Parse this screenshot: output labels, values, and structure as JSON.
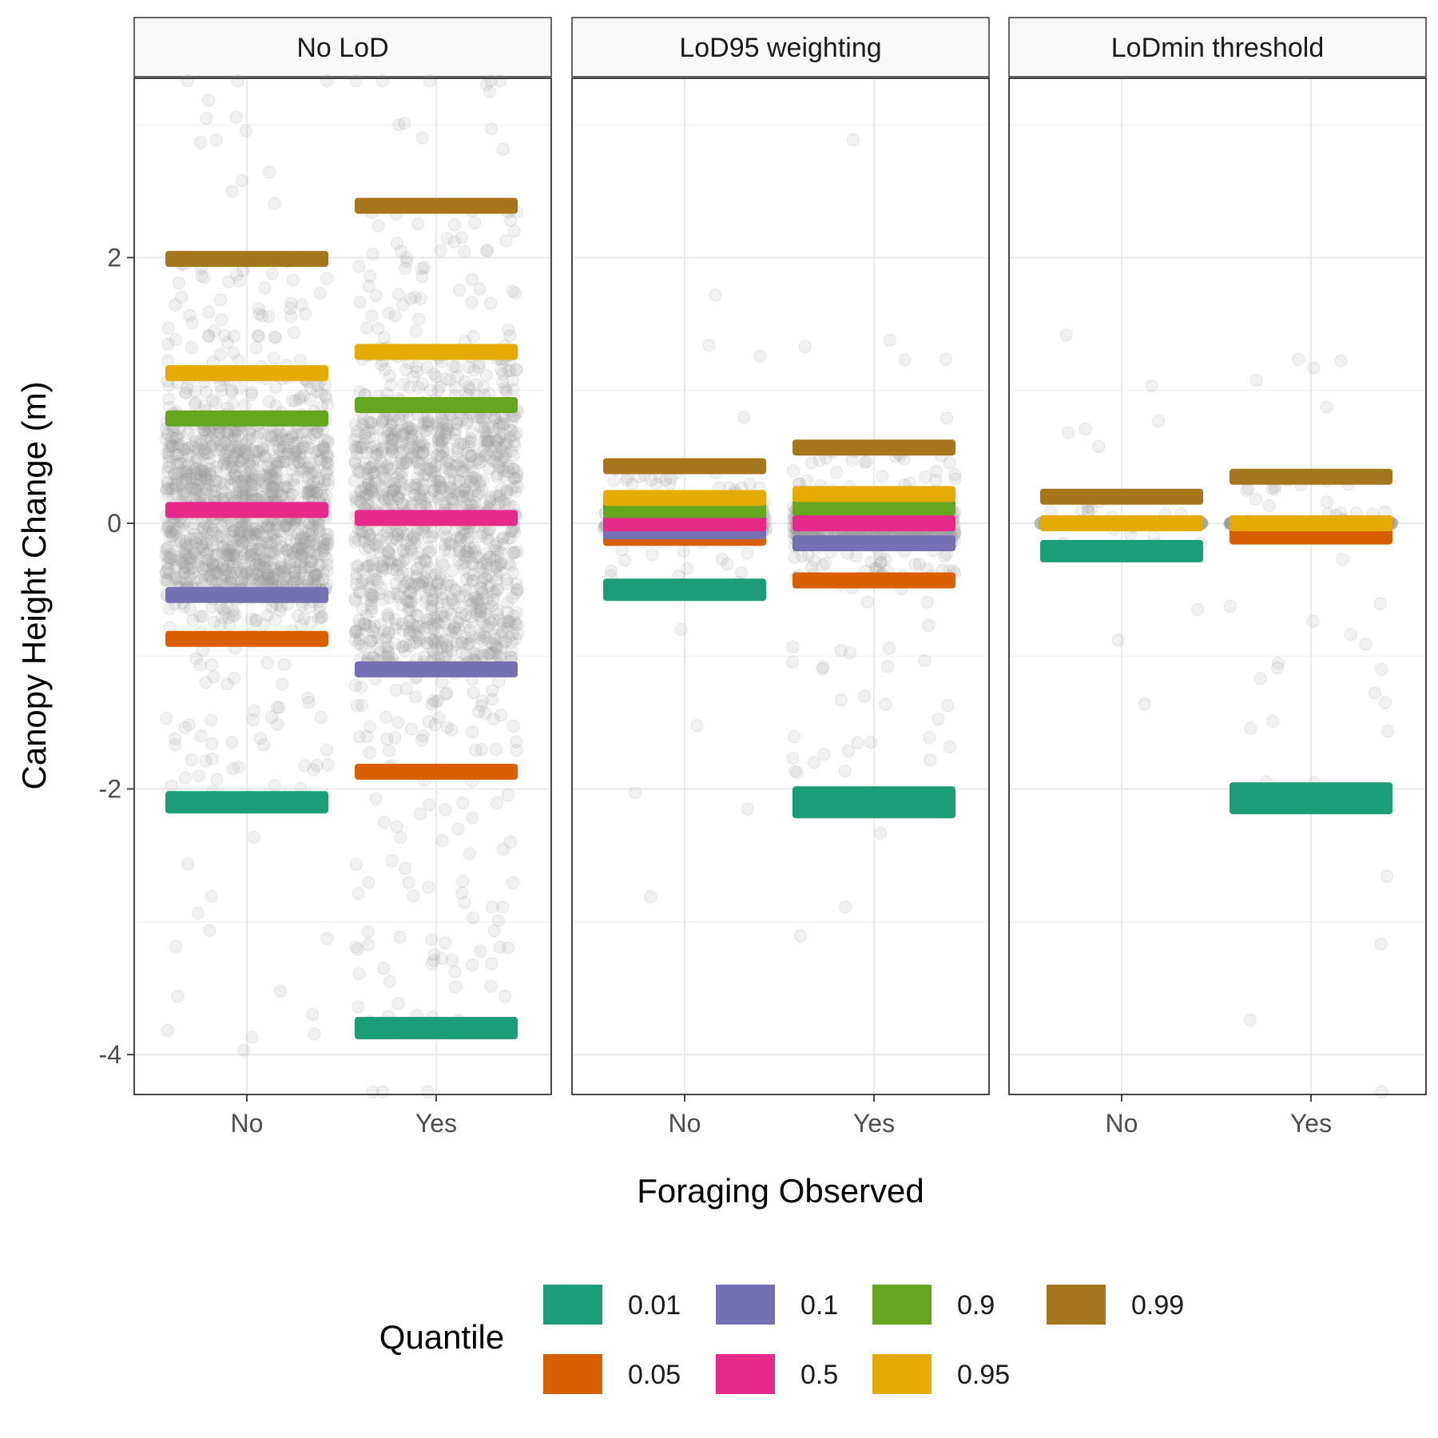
{
  "chart_data": {
    "type": "scatter",
    "facets": [
      "No LoD",
      "LoD95 weighting",
      "LoDmin threshold"
    ],
    "categories": [
      "No",
      "Yes"
    ],
    "xlabel": "Foraging Observed",
    "ylabel": "Canopy Height Change (m)",
    "ylim": [
      -4.3,
      3.35
    ],
    "yticks": [
      2,
      0,
      -2,
      -4
    ],
    "ytick_labels": [
      "2",
      "0",
      "-2",
      "-4"
    ],
    "grid": true,
    "point_color": "#9e9e9e",
    "legend": {
      "title": "Quantile",
      "placement": "bottom",
      "items": [
        {
          "label": "0.01",
          "color": "#1b9e77"
        },
        {
          "label": "0.05",
          "color": "#d95f02"
        },
        {
          "label": "0.1",
          "color": "#7570b3"
        },
        {
          "label": "0.5",
          "color": "#e7298a"
        },
        {
          "label": "0.9",
          "color": "#66a61e"
        },
        {
          "label": "0.95",
          "color": "#e6ab02"
        },
        {
          "label": "0.99",
          "color": "#a6761d"
        }
      ]
    },
    "series": [
      {
        "facet": "No LoD",
        "category": "No",
        "point_density": "dense",
        "quantiles": {
          "0.01": -2.1,
          "0.05": -0.87,
          "0.1": -0.54,
          "0.5": 0.1,
          "0.9": 0.79,
          "0.95": 1.13,
          "0.99": 1.99
        }
      },
      {
        "facet": "No LoD",
        "category": "Yes",
        "point_density": "dense",
        "quantiles": {
          "0.01": -3.8,
          "0.05": -1.87,
          "0.1": -1.1,
          "0.5": 0.04,
          "0.9": 0.89,
          "0.95": 1.29,
          "0.99": 2.39
        }
      },
      {
        "facet": "LoD95 weighting",
        "category": "No",
        "point_density": "medium",
        "quantiles": {
          "0.01": -0.5,
          "0.05": -0.11,
          "0.1": -0.06,
          "0.5": 0.0,
          "0.9": 0.1,
          "0.95": 0.19,
          "0.99": 0.43
        }
      },
      {
        "facet": "LoD95 weighting",
        "category": "Yes",
        "point_density": "medium-high",
        "quantiles": {
          "0.01": -2.1,
          "0.05": -0.43,
          "0.1": -0.15,
          "0.5": 0.0,
          "0.9": 0.12,
          "0.95": 0.22,
          "0.99": 0.57
        }
      },
      {
        "facet": "LoDmin threshold",
        "category": "No",
        "point_density": "sparse",
        "quantiles": {
          "0.01": -0.21,
          "0.05": 0.0,
          "0.1": 0.0,
          "0.5": 0.0,
          "0.9": 0.0,
          "0.95": 0.0,
          "0.99": 0.2
        }
      },
      {
        "facet": "LoDmin threshold",
        "category": "Yes",
        "point_density": "medium",
        "quantiles": {
          "0.01": -2.07,
          "0.05": -0.1,
          "0.1": 0.0,
          "0.5": 0.0,
          "0.9": 0.0,
          "0.95": 0.0,
          "0.99": 0.35
        }
      }
    ]
  }
}
